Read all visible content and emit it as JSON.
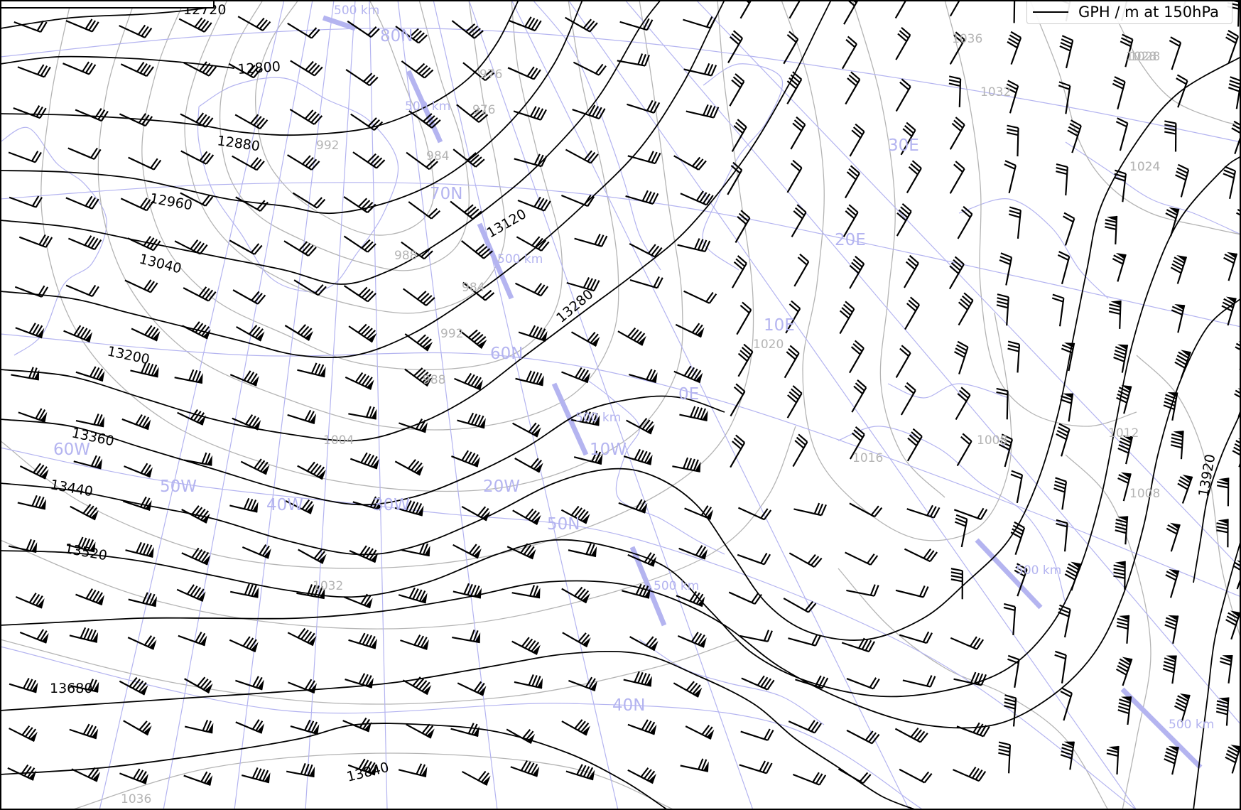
{
  "legend": {
    "label": "GPH / m at 150hPa"
  },
  "colors": {
    "gph": "#000000",
    "mslp": "#b4b4b4",
    "coast": "#b4b4f0",
    "grid": "#b4b4f0",
    "scale": "#b4b4f0",
    "barb": "#000000"
  },
  "gph_contours": [
    "12720",
    "12800",
    "12880",
    "12960",
    "13040",
    "13120",
    "13200",
    "13280",
    "13360",
    "13440",
    "13520",
    "13680",
    "13840",
    "13920"
  ],
  "mslp_contours": [
    "984",
    "988",
    "992",
    "976",
    "976",
    "984",
    "988",
    "992",
    "1004",
    "1008",
    "1012",
    "1016",
    "1020",
    "1024",
    "1028",
    "1032",
    "1032",
    "1036",
    "1036",
    "1024",
    "1028",
    "1008"
  ],
  "graticule_labels": [
    "80N",
    "70N",
    "60N",
    "50N",
    "40N",
    "60W",
    "50W",
    "40W",
    "30W",
    "20W",
    "10W",
    "0E",
    "10E",
    "20E",
    "30E"
  ],
  "scale_labels": [
    "500 km",
    "500 km",
    "500 km",
    "500 km",
    "500 km",
    "500 km",
    "500 km"
  ],
  "icons": {
    "barb": "wind-barb-icon"
  }
}
